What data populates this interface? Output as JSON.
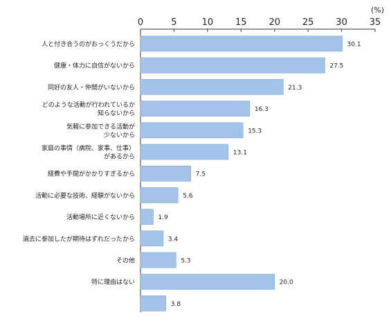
{
  "chart_data": {
    "type": "bar",
    "orientation": "horizontal",
    "unit": "(%)",
    "xlim": [
      0,
      35
    ],
    "ticks": [
      0,
      5,
      10,
      15,
      20,
      25,
      30,
      35
    ],
    "categories": [
      [
        "人と付き合うのがおっくうだから"
      ],
      [
        "健康・体力に自信がないから"
      ],
      [
        "同好の友人・仲間がいないから"
      ],
      [
        "どのような活動が行われているか",
        "知らないから"
      ],
      [
        "気軽に参加できる活動が",
        "少ないから"
      ],
      [
        "家庭の事情（病院、家事、仕事）",
        "があるから"
      ],
      [
        "経費や手間がかかりすぎるから"
      ],
      [
        "活動に必要な技術、経験がないから"
      ],
      [
        "活動場所に近くないから"
      ],
      [
        "過去に参加したが期待はずれだったから"
      ],
      [
        "その他"
      ],
      [
        "特に理由はない"
      ],
      [
        ""
      ]
    ],
    "values": [
      30.1,
      27.5,
      21.3,
      16.3,
      15.3,
      13.1,
      7.5,
      5.6,
      1.9,
      3.4,
      5.3,
      20.0,
      3.8
    ],
    "value_labels": [
      "30.1",
      "27.5",
      "21.3",
      "16.3",
      "15.3",
      "13.1",
      "7.5",
      "5.6",
      "1.9",
      "3.4",
      "5.3",
      "20.0",
      "3.8"
    ],
    "bar_color": "#a3c4e8",
    "bar_edge_color": "#7fa3cc",
    "grid": false,
    "legend": "none"
  }
}
